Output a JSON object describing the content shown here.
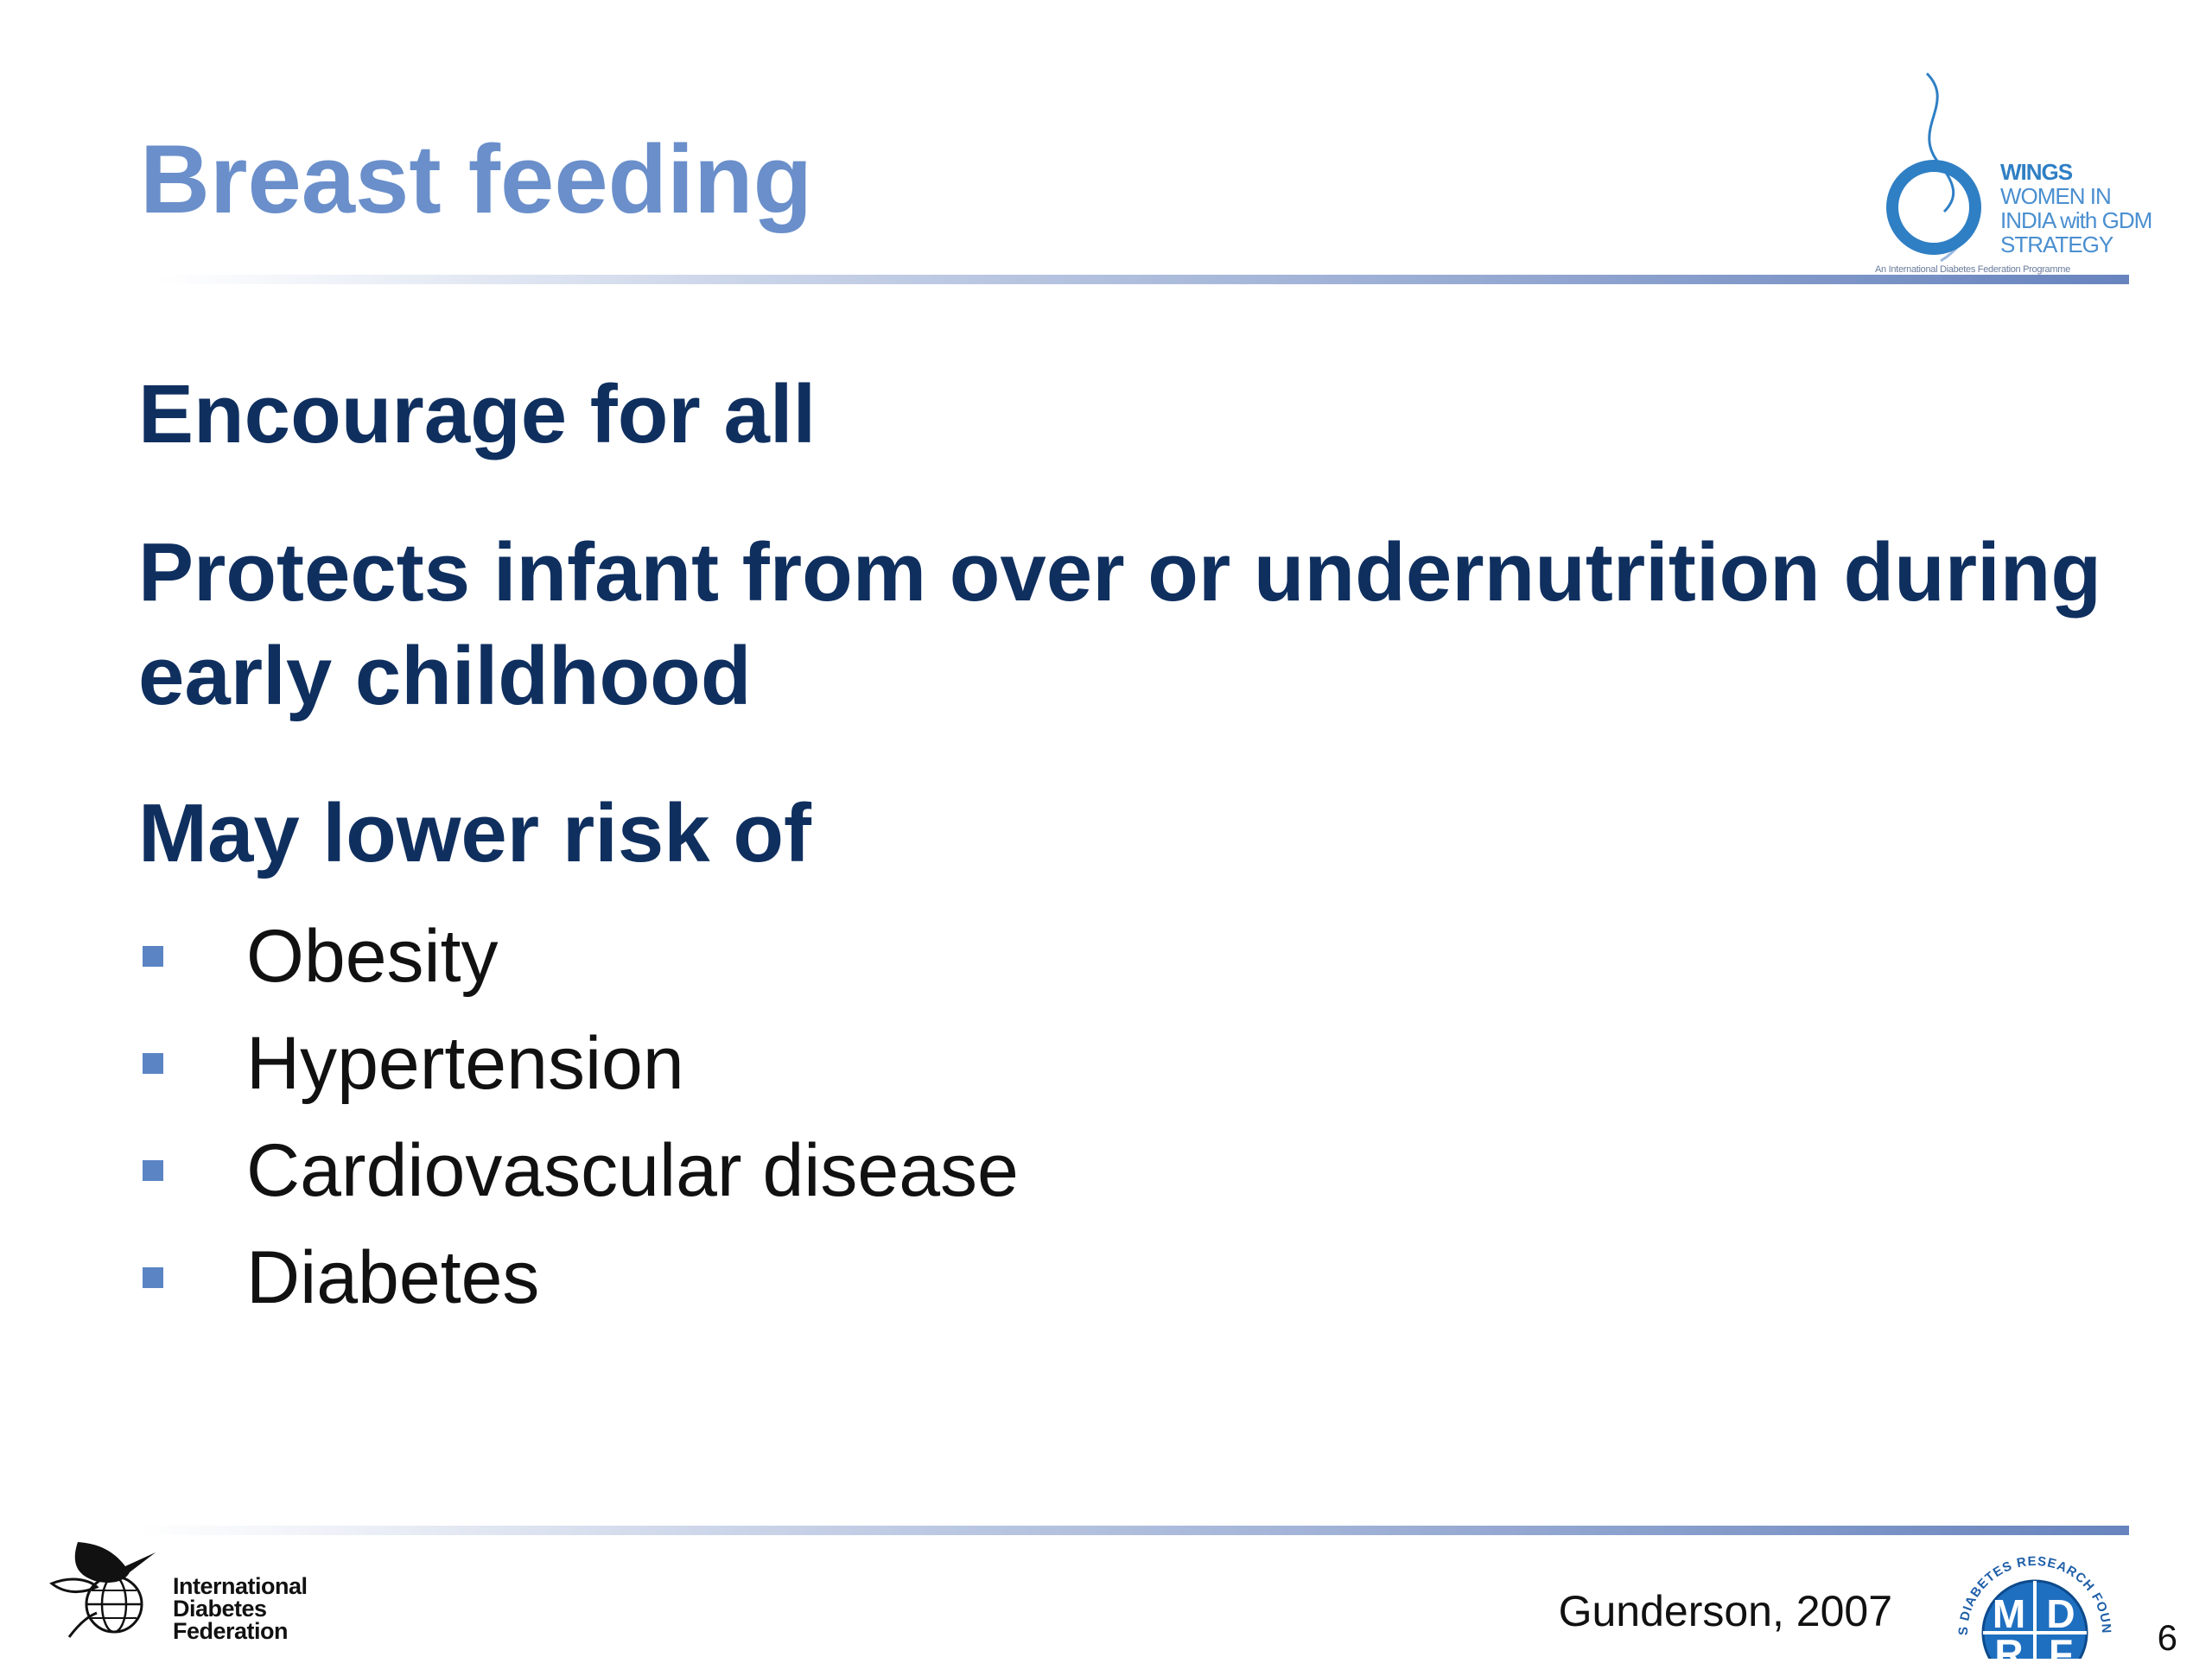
{
  "slide": {
    "title": "Breast feeding",
    "headings": [
      "Encourage for all",
      "Protects infant from over or undernutrition during early childhood",
      "May lower risk of"
    ],
    "bullets": [
      "Obesity",
      "Hypertension",
      "Cardiovascular disease",
      "Diabetes"
    ],
    "citation": "Gunderson, 2007",
    "page_number": "6"
  },
  "logos": {
    "wings": {
      "lines": [
        "WINGS",
        "WOMEN IN",
        "INDIA with GDM",
        "STRATEGY"
      ],
      "subtitle": "An International Diabetes Federation Programme"
    },
    "idf": {
      "lines": [
        "International",
        "Diabetes",
        "Federation"
      ]
    },
    "mdrf": {
      "ring_text": "MADRAS DIABETES RESEARCH FOUNDATION",
      "letters": [
        "M",
        "D",
        "R",
        "F"
      ]
    }
  },
  "colors": {
    "title": "#6a8fca",
    "heading": "#0f2f5f",
    "bullet_marker": "#5a84c4",
    "rule": "#6884be"
  }
}
